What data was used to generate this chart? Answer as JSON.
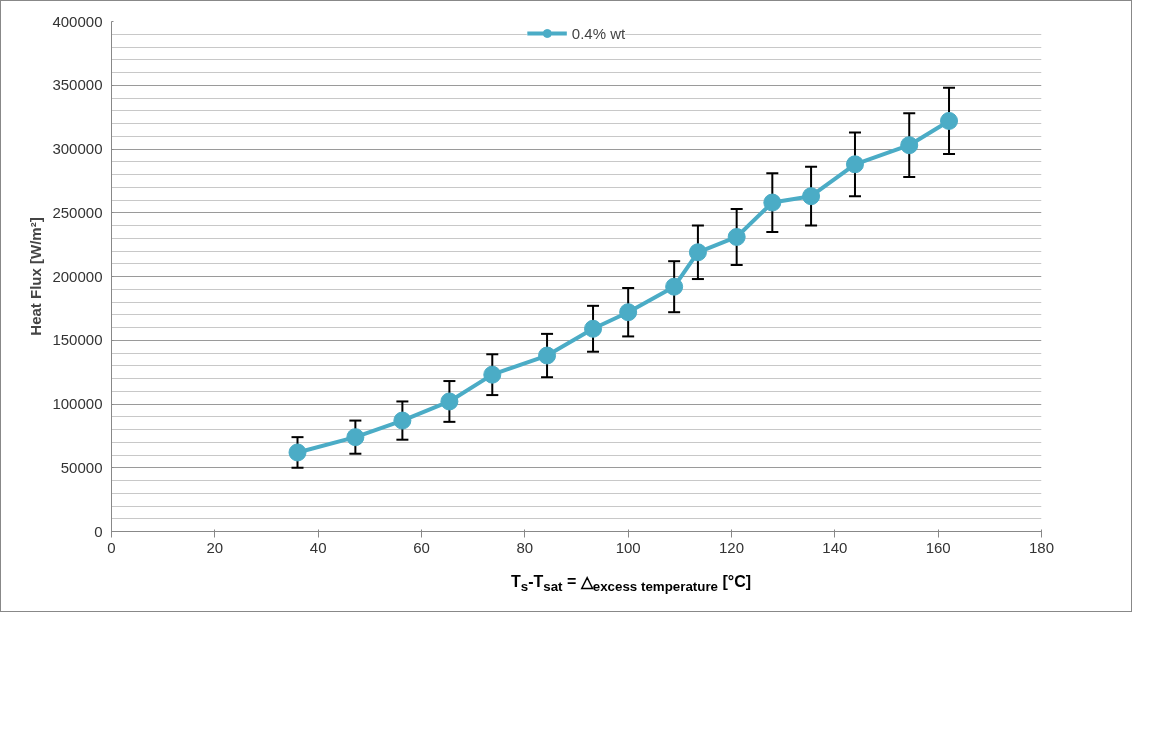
{
  "chart_data": {
    "type": "line",
    "xlabel": "T$_{s}$-T$_{sat}$ = △$_{excess temperature}$ [°C]",
    "ylabel": "Heat Flux [W/m²]",
    "x": [
      36,
      47.2,
      56.3,
      65.4,
      73.7,
      84.3,
      93.2,
      100,
      108.9,
      113.5,
      121,
      127.9,
      135.4,
      143.9,
      154.4,
      162.1
    ],
    "series": [
      {
        "name": "0.4% wt",
        "color": "#4bacc6",
        "values": [
          62000,
          74000,
          87000,
          102000,
          123000,
          138000,
          159000,
          172000,
          192000,
          219000,
          231000,
          258000,
          263000,
          288000,
          303000,
          322000
        ],
        "errors": [
          12000,
          13000,
          15000,
          16000,
          16000,
          17000,
          18000,
          19000,
          20000,
          21000,
          22000,
          23000,
          23000,
          25000,
          25000,
          26000
        ]
      }
    ],
    "xlim": [
      0,
      180
    ],
    "xticks": [
      0,
      20,
      40,
      60,
      80,
      100,
      120,
      140,
      160,
      180
    ],
    "ylim": [
      0,
      400000
    ],
    "yticks": [
      0,
      50000,
      100000,
      150000,
      200000,
      250000,
      300000,
      350000,
      400000
    ],
    "grid": "y",
    "legend": "top",
    "marker": "circle",
    "line_style": "solid"
  }
}
